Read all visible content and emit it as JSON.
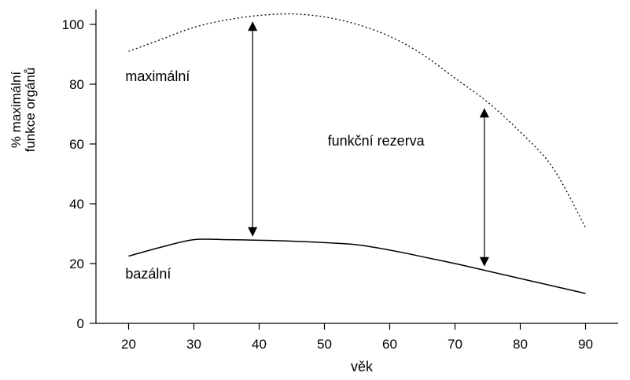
{
  "chart_data": {
    "type": "line",
    "xlabel": "věk",
    "ylabel_lines": [
      "% maximální",
      "funkce orgánů"
    ],
    "xlim": [
      15,
      95
    ],
    "ylim": [
      0,
      105
    ],
    "x_ticks": [
      20,
      30,
      40,
      50,
      60,
      70,
      80,
      90
    ],
    "y_ticks": [
      0,
      20,
      40,
      60,
      80,
      100
    ],
    "series": [
      {
        "name": "maximální",
        "style": "dotted",
        "x": [
          20,
          25,
          30,
          35,
          40,
          45,
          50,
          55,
          60,
          65,
          70,
          75,
          80,
          85,
          90
        ],
        "y": [
          91,
          95,
          99,
          101.5,
          103,
          103.5,
          102.5,
          100,
          96,
          90,
          82,
          74,
          64,
          52,
          32
        ]
      },
      {
        "name": "bazální",
        "style": "solid",
        "x": [
          20,
          25,
          30,
          35,
          40,
          45,
          50,
          55,
          60,
          65,
          70,
          75,
          80,
          85,
          90
        ],
        "y": [
          22.5,
          25.5,
          28,
          28,
          27.8,
          27.5,
          27,
          26.3,
          24.5,
          22.3,
          20,
          17.5,
          15,
          12.5,
          10
        ]
      }
    ],
    "annotations": [
      {
        "text": "maximální",
        "x": 19.5,
        "y": 81
      },
      {
        "text": "funkční rezerva",
        "x": 50.5,
        "y": 59.5
      },
      {
        "text": "bazální",
        "x": 19.5,
        "y": 15
      }
    ],
    "arrows": [
      {
        "x": 39,
        "y_from": 101,
        "y_to": 29
      },
      {
        "x": 74.5,
        "y_from": 72,
        "y_to": 19
      }
    ],
    "grid": false,
    "legend": "none"
  }
}
